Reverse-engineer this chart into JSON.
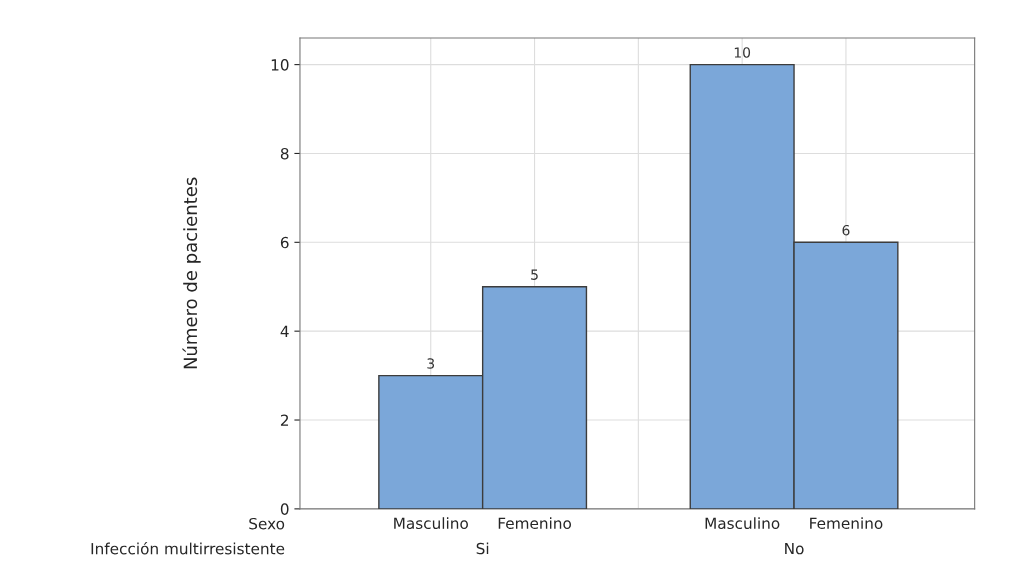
{
  "chart_data": {
    "type": "bar",
    "ylabel": "Número de pacientes",
    "categories": [
      "Masculino",
      "Femenino",
      null,
      "Masculino",
      "Femenino"
    ],
    "values": [
      3,
      5,
      null,
      10,
      6
    ],
    "color": "#7ba7d9",
    "ylim": [
      0,
      10.6
    ],
    "yticks": [
      0,
      2,
      4,
      6,
      8,
      10
    ],
    "grid": true,
    "data_labels": true,
    "annotations": [
      "Sexo",
      "Infección multirresistente",
      "Si",
      "No"
    ]
  }
}
